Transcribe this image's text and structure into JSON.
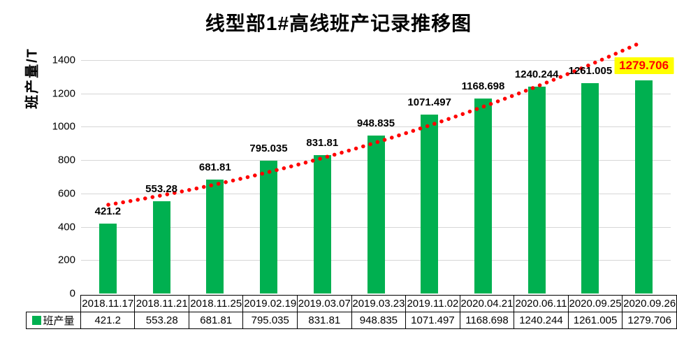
{
  "chart_data": {
    "type": "bar",
    "title": "线型部1#高线班产记录推移图",
    "ylabel": "班产量/T",
    "categories": [
      "2018.11.17",
      "2018.11.21",
      "2018.11.25",
      "2019.02.19",
      "2019.03.07",
      "2019.03.23",
      "2019.11.02",
      "2020.04.21",
      "2020.06.11",
      "2020.09.25",
      "2020.09.26"
    ],
    "series": [
      {
        "name": "班产量",
        "values": [
          421.2,
          553.28,
          681.81,
          795.035,
          831.81,
          948.835,
          1071.497,
          1168.698,
          1240.244,
          1261.005,
          1279.706
        ]
      }
    ],
    "value_labels": [
      "421.2",
      "553.28",
      "681.81",
      "795.035",
      "831.81",
      "948.835",
      "1071.497",
      "1168.698",
      "1240.244",
      "1261.005",
      "1279.706"
    ],
    "yticks": [
      "0",
      "200",
      "400",
      "600",
      "800",
      "1000",
      "1200",
      "1400"
    ],
    "ylim": [
      0,
      1400
    ],
    "ytick_step": 200,
    "grid": true,
    "legend_label": "班产量",
    "bar_color": "#00B050",
    "gridline_color": "#d6d6d6",
    "trendline": {
      "style": "dotted",
      "color": "#FF0000"
    },
    "highlight_last": {
      "index": 10,
      "text_color": "#FF0000",
      "background": "#FFFF00"
    }
  }
}
